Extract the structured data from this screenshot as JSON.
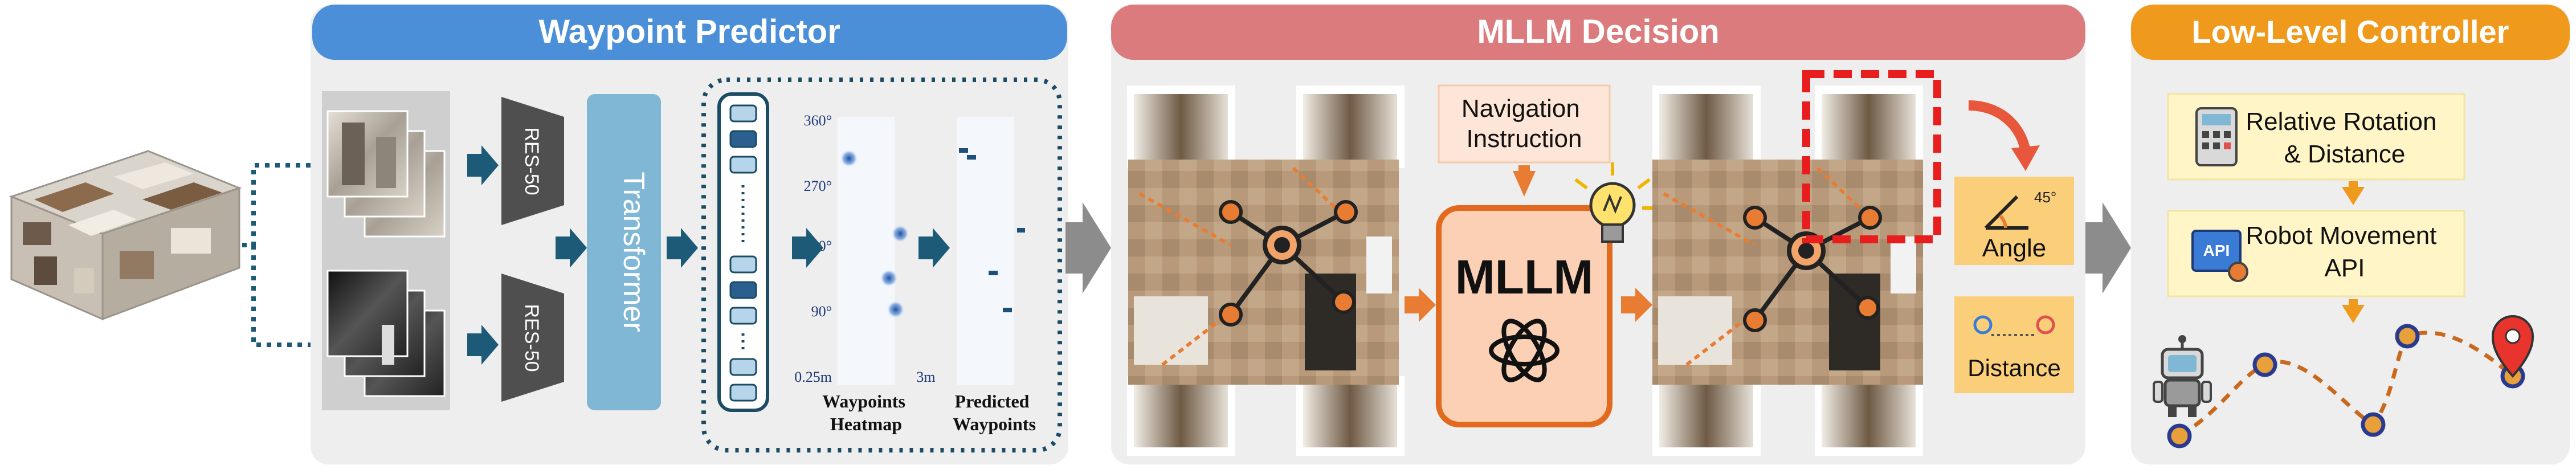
{
  "panels": {
    "waypoint_predictor": {
      "title": "Waypoint Predictor",
      "encoder_top": "RES-50",
      "encoder_bottom": "RES-50",
      "transformer": "Transformer",
      "heatmap_label": "Waypoints\nHeatmap",
      "predicted_label": "Predicted\nWaypoints",
      "y_ticks": [
        "360°",
        "270°",
        "180°",
        "90°",
        "0.25m"
      ],
      "x_end_label": "3m"
    },
    "mllm_decision": {
      "title": "MLLM Decision",
      "nav_instruction": "Navigation\nInstruction",
      "mllm_label": "MLLM",
      "angle_label": "Angle",
      "angle_value": "45°",
      "distance_label": "Distance"
    },
    "low_level_controller": {
      "title": "Low-Level Controller",
      "rotation_label": "Relative Rotation\n& Distance",
      "movement_label": "Robot Movement\nAPI",
      "api_icon_text": "API"
    }
  },
  "colors": {
    "blue_header": "#4a8fd8",
    "red_header": "#dc7b7d",
    "orange_header": "#f09a1d",
    "panel_bg": "#eeeeee",
    "transformer": "#7fb7d4",
    "arrow_dark": "#1c5a78",
    "orange": "#e97c33",
    "mllm_fill": "#fbd0b4",
    "nav_fill": "#fde6d8",
    "yellow_box": "#fbcf7a",
    "cream_box": "#fff5c6",
    "red_dash": "#e81e1e"
  },
  "icons": [
    "house-3d-model",
    "lightbulb-icon",
    "openai-logo-icon",
    "calculator-icon",
    "api-gear-icon",
    "robot-icon",
    "location-pin-icon",
    "angle-icon",
    "distance-icon"
  ]
}
